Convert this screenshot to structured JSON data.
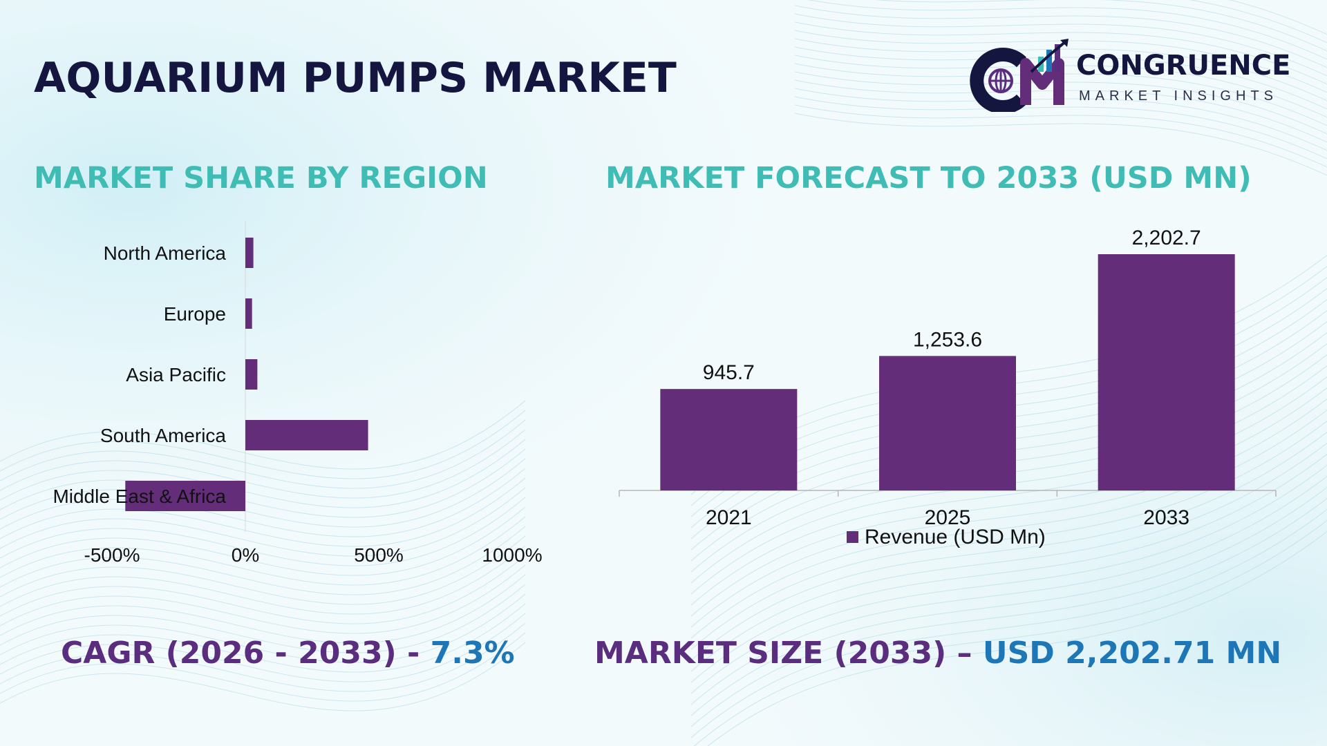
{
  "title": "AQUARIUM PUMPS MARKET",
  "brand": {
    "mark_text": "CM",
    "name": "CONGRUENCE",
    "tagline": "MARKET INSIGHTS"
  },
  "colors": {
    "bar": "#632d7a",
    "title": "#14163f",
    "section_title": "#3fbcb4",
    "stat_label": "#5b2d7e",
    "stat_value": "#1d77b7"
  },
  "chart_data": [
    {
      "type": "bar",
      "orientation": "horizontal",
      "title": "MARKET SHARE BY REGION",
      "categories": [
        "North America",
        "Europe",
        "Asia Pacific",
        "South America",
        "Middle East & Africa"
      ],
      "values": [
        30,
        25,
        45,
        460,
        -450
      ],
      "xlim": [
        -500,
        1000
      ],
      "xticks": [
        "-500%",
        "0%",
        "500%",
        "1000%"
      ],
      "xtick_values": [
        -500,
        0,
        500,
        1000
      ],
      "grid": false,
      "legend": "none"
    },
    {
      "type": "bar",
      "title": "MARKET FORECAST TO 2033 (USD MN)",
      "categories": [
        "2021",
        "2025",
        "2033"
      ],
      "series": [
        {
          "name": "Revenue (USD Mn)",
          "values": [
            945.7,
            1253.6,
            2202.7
          ],
          "labels": [
            "945.7",
            "1,253.6",
            "2,202.7"
          ]
        }
      ],
      "ylim": [
        0,
        2202.7
      ],
      "grid": false,
      "legend": "bottom"
    }
  ],
  "stats": {
    "cagr_label": "CAGR (2026 - 2033) - ",
    "cagr_value": "7.3%",
    "size_label": "MARKET SIZE (2033) – ",
    "size_value": "USD 2,202.71 MN"
  }
}
